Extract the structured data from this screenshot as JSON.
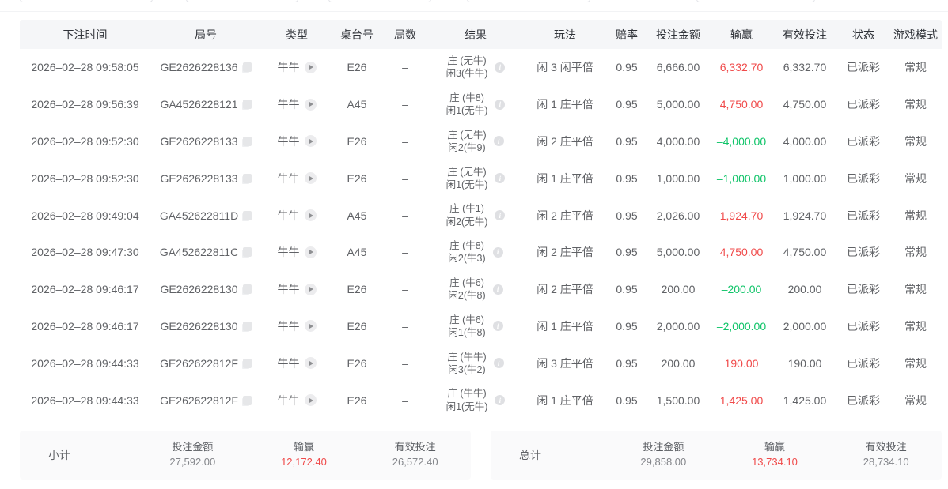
{
  "palette": {
    "win_color": "#f04a4a",
    "loss_color": "#10c469",
    "header_bg": "#f5f6f8",
    "summary_bg": "#fafafb"
  },
  "icons": {
    "copy": "copy-icon",
    "play": "play-icon",
    "info": "i"
  },
  "table": {
    "columns": [
      "下注时间",
      "局号",
      "类型",
      "桌台号",
      "局数",
      "结果",
      "玩法",
      "赔率",
      "投注金额",
      "输赢",
      "有效投注",
      "状态",
      "游戏模式"
    ],
    "rows": [
      {
        "time": "2026–02–28 09:58:05",
        "round_no": "GE2626228136",
        "type": "牛牛",
        "table_no": "E26",
        "rounds": "–",
        "result_banker": "庄 (无牛)",
        "result_player": "闲3(牛牛)",
        "play": "闲 3 闲平倍",
        "odds": "0.95",
        "bet_amount": "6,666.00",
        "win_loss": "6,332.70",
        "win_loss_type": "win",
        "valid_bet": "6,332.70",
        "status": "已派彩",
        "mode": "常规"
      },
      {
        "time": "2026–02–28 09:56:39",
        "round_no": "GA4526228121",
        "type": "牛牛",
        "table_no": "A45",
        "rounds": "–",
        "result_banker": "庄 (牛8)",
        "result_player": "闲1(无牛)",
        "play": "闲 1 庄平倍",
        "odds": "0.95",
        "bet_amount": "5,000.00",
        "win_loss": "4,750.00",
        "win_loss_type": "win",
        "valid_bet": "4,750.00",
        "status": "已派彩",
        "mode": "常规"
      },
      {
        "time": "2026–02–28 09:52:30",
        "round_no": "GE2626228133",
        "type": "牛牛",
        "table_no": "E26",
        "rounds": "–",
        "result_banker": "庄 (无牛)",
        "result_player": "闲2(牛9)",
        "play": "闲 2 庄平倍",
        "odds": "0.95",
        "bet_amount": "4,000.00",
        "win_loss": "–4,000.00",
        "win_loss_type": "loss",
        "valid_bet": "4,000.00",
        "status": "已派彩",
        "mode": "常规"
      },
      {
        "time": "2026–02–28 09:52:30",
        "round_no": "GE2626228133",
        "type": "牛牛",
        "table_no": "E26",
        "rounds": "–",
        "result_banker": "庄 (无牛)",
        "result_player": "闲1(无牛)",
        "play": "闲 1 庄平倍",
        "odds": "0.95",
        "bet_amount": "1,000.00",
        "win_loss": "–1,000.00",
        "win_loss_type": "loss",
        "valid_bet": "1,000.00",
        "status": "已派彩",
        "mode": "常规"
      },
      {
        "time": "2026–02–28 09:49:04",
        "round_no": "GA452622811D",
        "type": "牛牛",
        "table_no": "A45",
        "rounds": "–",
        "result_banker": "庄 (牛1)",
        "result_player": "闲2(无牛)",
        "play": "闲 2 庄平倍",
        "odds": "0.95",
        "bet_amount": "2,026.00",
        "win_loss": "1,924.70",
        "win_loss_type": "win",
        "valid_bet": "1,924.70",
        "status": "已派彩",
        "mode": "常规"
      },
      {
        "time": "2026–02–28 09:47:30",
        "round_no": "GA452622811C",
        "type": "牛牛",
        "table_no": "A45",
        "rounds": "–",
        "result_banker": "庄 (牛8)",
        "result_player": "闲2(牛3)",
        "play": "闲 2 庄平倍",
        "odds": "0.95",
        "bet_amount": "5,000.00",
        "win_loss": "4,750.00",
        "win_loss_type": "win",
        "valid_bet": "4,750.00",
        "status": "已派彩",
        "mode": "常规"
      },
      {
        "time": "2026–02–28 09:46:17",
        "round_no": "GE2626228130",
        "type": "牛牛",
        "table_no": "E26",
        "rounds": "–",
        "result_banker": "庄 (牛6)",
        "result_player": "闲2(牛8)",
        "play": "闲 2 庄平倍",
        "odds": "0.95",
        "bet_amount": "200.00",
        "win_loss": "–200.00",
        "win_loss_type": "loss",
        "valid_bet": "200.00",
        "status": "已派彩",
        "mode": "常规"
      },
      {
        "time": "2026–02–28 09:46:17",
        "round_no": "GE2626228130",
        "type": "牛牛",
        "table_no": "E26",
        "rounds": "–",
        "result_banker": "庄 (牛6)",
        "result_player": "闲1(牛8)",
        "play": "闲 1 庄平倍",
        "odds": "0.95",
        "bet_amount": "2,000.00",
        "win_loss": "–2,000.00",
        "win_loss_type": "loss",
        "valid_bet": "2,000.00",
        "status": "已派彩",
        "mode": "常规"
      },
      {
        "time": "2026–02–28 09:44:33",
        "round_no": "GE262622812F",
        "type": "牛牛",
        "table_no": "E26",
        "rounds": "–",
        "result_banker": "庄 (牛牛)",
        "result_player": "闲3(牛2)",
        "play": "闲 3 庄平倍",
        "odds": "0.95",
        "bet_amount": "200.00",
        "win_loss": "190.00",
        "win_loss_type": "win",
        "valid_bet": "190.00",
        "status": "已派彩",
        "mode": "常规"
      },
      {
        "time": "2026–02–28 09:44:33",
        "round_no": "GE262622812F",
        "type": "牛牛",
        "table_no": "E26",
        "rounds": "–",
        "result_banker": "庄 (牛牛)",
        "result_player": "闲1(无牛)",
        "play": "闲 1 庄平倍",
        "odds": "0.95",
        "bet_amount": "1,500.00",
        "win_loss": "1,425.00",
        "win_loss_type": "win",
        "valid_bet": "1,425.00",
        "status": "已派彩",
        "mode": "常规"
      }
    ]
  },
  "summary": {
    "subtotal": {
      "label": "小计",
      "items": [
        {
          "label": "投注金额",
          "value": "27,592.00",
          "type": "normal"
        },
        {
          "label": "输赢",
          "value": "12,172.40",
          "type": "win"
        },
        {
          "label": "有效投注",
          "value": "26,572.40",
          "type": "normal"
        }
      ]
    },
    "total": {
      "label": "总计",
      "items": [
        {
          "label": "投注金额",
          "value": "29,858.00",
          "type": "normal"
        },
        {
          "label": "输赢",
          "value": "13,734.10",
          "type": "win"
        },
        {
          "label": "有效投注",
          "value": "28,734.10",
          "type": "normal"
        }
      ]
    }
  }
}
